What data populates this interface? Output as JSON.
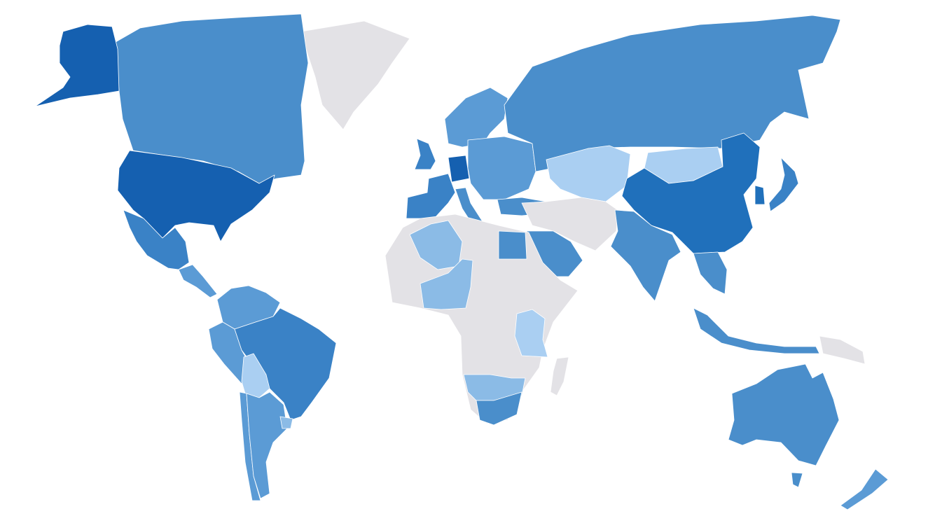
{
  "map": {
    "type": "choropleth",
    "colors": {
      "level1": "#aacff2",
      "level2": "#8bbbe6",
      "level3": "#5b9bd5",
      "level4": "#4a8ecb",
      "level5": "#3a82c6",
      "level6": "#2070bb",
      "level7": "#1560b0",
      "no_data": "#e3e2e6"
    },
    "regions": {
      "alaska": "level7",
      "canada": "level4",
      "usa": "level7",
      "mexico": "level5",
      "central-america": "level3",
      "greenland": "no_data",
      "colombia-venezuela": "level3",
      "brazil": "level5",
      "peru": "level3",
      "bolivia": "level1",
      "argentina": "level3",
      "chile": "level3",
      "uruguay": "level2",
      "united-kingdom": "level5",
      "scandinavia": "level3",
      "france-spain": "level5",
      "germany": "level7",
      "eastern-europe": "level3",
      "italy": "level4",
      "turkey": "level4",
      "russia": "level4",
      "kazakhstan": "level1",
      "mongolia": "level1",
      "china": "level6",
      "india": "level4",
      "middle-east": "no_data",
      "saudi-arabia": "level4",
      "southeast-asia": "level4",
      "indonesia": "level4",
      "japan": "level5",
      "south-korea": "level6",
      "africa": "no_data",
      "egypt": "level4",
      "algeria": "level2",
      "west-africa": "level2",
      "east-africa": "level1",
      "southern-africa": "level2",
      "south-africa": "level4",
      "madagascar": "no_data",
      "australia": "level4",
      "tasmania": "level4",
      "new-zealand": "level3",
      "papua-new-guinea": "no_data"
    }
  }
}
